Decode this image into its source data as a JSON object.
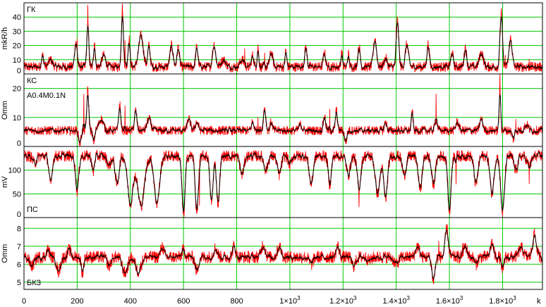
{
  "chart_data": {
    "type": "line",
    "xlabel": "k",
    "xlim": [
      0,
      1950
    ],
    "x_ticks": [
      {
        "value": 0,
        "label": "0",
        "exp": ""
      },
      {
        "value": 200,
        "label": "200",
        "exp": ""
      },
      {
        "value": 400,
        "label": "400",
        "exp": ""
      },
      {
        "value": 600,
        "label": "600",
        "exp": ""
      },
      {
        "value": 800,
        "label": "800",
        "exp": ""
      },
      {
        "value": 1000,
        "label": "1×10",
        "exp": "3"
      },
      {
        "value": 1200,
        "label": "1.2×10",
        "exp": "3"
      },
      {
        "value": 1400,
        "label": "1.4×10",
        "exp": "3"
      },
      {
        "value": 1600,
        "label": "1.6×10",
        "exp": "3"
      },
      {
        "value": 1800,
        "label": "1.8×10",
        "exp": "3"
      }
    ],
    "grid": true,
    "series_colors": {
      "raw": "#ff0000",
      "smoothed": "#000000"
    },
    "grid_color": "#00c800",
    "panels": [
      {
        "name": "ГК",
        "subtitle": "",
        "ylabel": "mkR/h",
        "ylim": [
          0,
          50
        ],
        "yticks": [
          0,
          10,
          20,
          30,
          40
        ],
        "baseline": 5,
        "noise": 3.5,
        "smooth": 3,
        "events": [
          [
            70,
            8,
            6
          ],
          [
            100,
            5,
            10
          ],
          [
            195,
            18,
            6
          ],
          [
            240,
            30,
            5
          ],
          [
            265,
            18,
            4
          ],
          [
            300,
            8,
            10
          ],
          [
            370,
            42,
            5
          ],
          [
            395,
            20,
            5
          ],
          [
            440,
            22,
            12
          ],
          [
            470,
            15,
            6
          ],
          [
            555,
            15,
            8
          ],
          [
            580,
            14,
            6
          ],
          [
            650,
            14,
            6
          ],
          [
            715,
            16,
            8
          ],
          [
            750,
            5,
            12
          ],
          [
            820,
            5,
            10
          ],
          [
            860,
            8,
            6
          ],
          [
            880,
            14,
            4
          ],
          [
            930,
            10,
            8
          ],
          [
            985,
            12,
            4
          ],
          [
            1060,
            14,
            6
          ],
          [
            1130,
            10,
            6
          ],
          [
            1195,
            10,
            4
          ],
          [
            1220,
            9,
            4
          ],
          [
            1260,
            14,
            6
          ],
          [
            1320,
            20,
            8
          ],
          [
            1360,
            6,
            8
          ],
          [
            1405,
            34,
            6
          ],
          [
            1440,
            16,
            8
          ],
          [
            1520,
            16,
            6
          ],
          [
            1610,
            10,
            6
          ],
          [
            1660,
            14,
            6
          ],
          [
            1720,
            10,
            10
          ],
          [
            1795,
            38,
            6
          ],
          [
            1830,
            20,
            8
          ]
        ],
        "spikes": [
          [
            200,
            10
          ],
          [
            240,
            15
          ],
          [
            380,
            20
          ],
          [
            830,
            12
          ],
          [
            905,
            8
          ],
          [
            1400,
            10
          ],
          [
            1790,
            10
          ],
          [
            1810,
            8
          ],
          [
            1900,
            6
          ]
        ]
      },
      {
        "name": "КС",
        "subtitle": "A0.4M0.1N",
        "ylabel": "Omm",
        "ylim": [
          0,
          25
        ],
        "yticks": [
          0,
          10,
          20
        ],
        "baseline": 5.5,
        "noise": 1.6,
        "smooth": 3,
        "events": [
          [
            210,
            -4.5,
            6
          ],
          [
            240,
            14,
            5
          ],
          [
            262,
            -4,
            5
          ],
          [
            290,
            4,
            12
          ],
          [
            360,
            9,
            5
          ],
          [
            420,
            7,
            6
          ],
          [
            470,
            4,
            10
          ],
          [
            620,
            4,
            8
          ],
          [
            650,
            3,
            8
          ],
          [
            860,
            3,
            6
          ],
          [
            905,
            8,
            6
          ],
          [
            930,
            3,
            6
          ],
          [
            1040,
            2,
            8
          ],
          [
            1130,
            5,
            6
          ],
          [
            1175,
            7,
            5
          ],
          [
            1210,
            -4,
            6
          ],
          [
            1360,
            3,
            6
          ],
          [
            1460,
            7,
            4
          ],
          [
            1550,
            4,
            6
          ],
          [
            1630,
            3,
            8
          ],
          [
            1720,
            4,
            8
          ],
          [
            1790,
            14,
            4
          ],
          [
            1840,
            -3,
            6
          ],
          [
            1890,
            2,
            10
          ]
        ],
        "spikes": [
          [
            225,
            12
          ],
          [
            380,
            10
          ],
          [
            880,
            6
          ],
          [
            1150,
            6
          ],
          [
            1550,
            8
          ],
          [
            1790,
            6
          ],
          [
            1850,
            4
          ]
        ]
      },
      {
        "name": "ПС",
        "subtitle": "",
        "ylabel": "mV",
        "ylim": [
          0,
          150
        ],
        "yticks": [
          0,
          50,
          100
        ],
        "baseline": 130,
        "noise": 12,
        "smooth": 3,
        "events": [
          [
            40,
            -15,
            10
          ],
          [
            100,
            -60,
            8
          ],
          [
            200,
            -75,
            8
          ],
          [
            260,
            -35,
            6
          ],
          [
            320,
            -20,
            10
          ],
          [
            350,
            -60,
            10
          ],
          [
            400,
            -100,
            14
          ],
          [
            440,
            -105,
            18
          ],
          [
            500,
            -100,
            14
          ],
          [
            600,
            -125,
            8
          ],
          [
            650,
            -120,
            8
          ],
          [
            705,
            -100,
            8
          ],
          [
            730,
            -100,
            8
          ],
          [
            820,
            -40,
            10
          ],
          [
            910,
            -30,
            10
          ],
          [
            960,
            -40,
            10
          ],
          [
            1000,
            -20,
            8
          ],
          [
            1080,
            -60,
            10
          ],
          [
            1150,
            -60,
            8
          ],
          [
            1220,
            -40,
            10
          ],
          [
            1260,
            -65,
            10
          ],
          [
            1330,
            -80,
            12
          ],
          [
            1360,
            -90,
            10
          ],
          [
            1430,
            -40,
            10
          ],
          [
            1490,
            -70,
            10
          ],
          [
            1540,
            -60,
            10
          ],
          [
            1600,
            -120,
            8
          ],
          [
            1700,
            -60,
            10
          ],
          [
            1760,
            -80,
            10
          ],
          [
            1800,
            -120,
            10
          ],
          [
            1850,
            -30,
            10
          ],
          [
            1900,
            -20,
            12
          ]
        ],
        "spikes": [
          [
            660,
            -80
          ],
          [
            1260,
            -50
          ],
          [
            1625,
            -60
          ],
          [
            1900,
            -40
          ]
        ]
      },
      {
        "name": "БКЗ",
        "subtitle": "",
        "ylabel": "Omm",
        "ylim": [
          4.6,
          8.6
        ],
        "yticks": [
          5,
          6,
          7,
          8
        ],
        "baseline": 6.4,
        "noise": 0.35,
        "smooth": 4,
        "events": [
          [
            30,
            -0.5,
            12
          ],
          [
            90,
            0.4,
            8
          ],
          [
            130,
            -0.8,
            10
          ],
          [
            170,
            0.4,
            8
          ],
          [
            220,
            -0.9,
            6
          ],
          [
            320,
            -0.5,
            10
          ],
          [
            380,
            -0.9,
            14
          ],
          [
            430,
            -0.8,
            14
          ],
          [
            520,
            0.6,
            8
          ],
          [
            600,
            0.4,
            8
          ],
          [
            650,
            -0.8,
            8
          ],
          [
            720,
            0.5,
            10
          ],
          [
            790,
            0.6,
            8
          ],
          [
            900,
            0.7,
            10
          ],
          [
            960,
            0.6,
            10
          ],
          [
            1080,
            -0.4,
            10
          ],
          [
            1180,
            0.6,
            8
          ],
          [
            1240,
            -0.5,
            10
          ],
          [
            1300,
            -0.2,
            10
          ],
          [
            1400,
            -0.4,
            12
          ],
          [
            1480,
            0.6,
            10
          ],
          [
            1540,
            -1.3,
            8
          ],
          [
            1590,
            1.6,
            8
          ],
          [
            1660,
            0.6,
            10
          ],
          [
            1700,
            -0.4,
            8
          ],
          [
            1760,
            0.8,
            8
          ],
          [
            1800,
            -0.8,
            6
          ],
          [
            1870,
            0.5,
            12
          ],
          [
            1920,
            1.2,
            10
          ]
        ],
        "spikes": [
          [
            1560,
            0.8
          ],
          [
            1650,
            0.6
          ],
          [
            1920,
            0.5
          ]
        ]
      }
    ]
  }
}
